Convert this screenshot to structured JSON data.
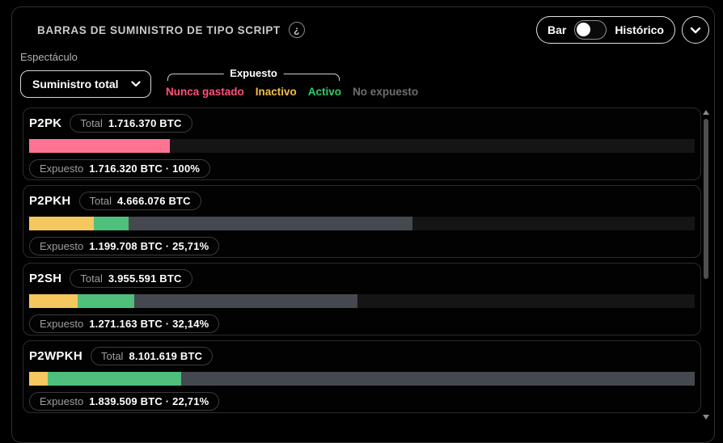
{
  "header": {
    "title": "BARRAS DE SUMINISTRO DE TIPO SCRIPT",
    "info_icon_glyph": "¿",
    "toggle": {
      "left_label": "Bar",
      "right_label": "Histórico",
      "state": "left"
    },
    "collapse_icon": "chevron-down"
  },
  "controls": {
    "show_label": "Espectáculo",
    "select": {
      "value": "Suministro total"
    },
    "legend": {
      "bracket_label": "Expuesto",
      "items": [
        {
          "label": "Nunca gastado",
          "color": "#fc5277"
        },
        {
          "label": "Inactivo",
          "color": "#f0bf49"
        },
        {
          "label": "Activo",
          "color": "#2fca6c"
        }
      ],
      "outside_item": {
        "label": "No expuesto",
        "color": "#6e6e6e"
      }
    }
  },
  "cards": [
    {
      "name": "P2PK",
      "total_label": "Total",
      "total_value": "1.716.370 BTC",
      "exposed_label": "Expuesto",
      "exposed_value": "1.716.320 BTC · 100%",
      "segments": [
        {
          "color": "#fd7493",
          "width": 21.2
        }
      ]
    },
    {
      "name": "P2PKH",
      "total_label": "Total",
      "total_value": "4.666.076 BTC",
      "exposed_label": "Expuesto",
      "exposed_value": "1.199.708 BTC · 25,71%",
      "segments": [
        {
          "color": "#f5c75f",
          "width": 9.7
        },
        {
          "color": "#4ec07c",
          "width": 5.2
        },
        {
          "color": "#45494f",
          "width": 42.7
        }
      ]
    },
    {
      "name": "P2SH",
      "total_label": "Total",
      "total_value": "3.955.591 BTC",
      "exposed_label": "Expuesto",
      "exposed_value": "1.271.163 BTC · 32,14%",
      "segments": [
        {
          "color": "#f5c75f",
          "width": 7.3
        },
        {
          "color": "#4ec07c",
          "width": 8.5
        },
        {
          "color": "#45494f",
          "width": 33.5
        }
      ]
    },
    {
      "name": "P2WPKH",
      "total_label": "Total",
      "total_value": "8.101.619 BTC",
      "exposed_label": "Expuesto",
      "exposed_value": "1.839.509 BTC · 22,71%",
      "segments": [
        {
          "color": "#f5c75f",
          "width": 2.8
        },
        {
          "color": "#4ec07c",
          "width": 20.1
        },
        {
          "color": "#45494f",
          "width": 77.1
        }
      ]
    }
  ],
  "colors": {
    "never_spent": "#fd7493",
    "inactive": "#f5c75f",
    "active": "#4ec07c",
    "not_exposed": "#45494f",
    "bar_track": "#151515",
    "panel_border": "#2f2f2f",
    "card_border": "#2c2c2c"
  },
  "chart_data": {
    "type": "bar",
    "orientation": "horizontal-stacked",
    "title": "Barras de suministro de tipo script",
    "categories": [
      "P2PK",
      "P2PKH",
      "P2SH",
      "P2WPKH"
    ],
    "totals_btc": [
      1716370,
      4666076,
      3955591,
      8101619
    ],
    "exposed_btc": [
      1716320,
      1199708,
      1271163,
      1839509
    ],
    "exposed_pct": [
      100,
      25.71,
      32.14,
      22.71
    ],
    "series": [
      {
        "name": "Nunca gastado",
        "color": "#fd7493",
        "values": [
          1716320,
          0,
          0,
          0
        ]
      },
      {
        "name": "Inactivo",
        "color": "#f5c75f",
        "values": [
          0,
          780000,
          590000,
          230000
        ]
      },
      {
        "name": "Activo",
        "color": "#4ec07c",
        "values": [
          0,
          420000,
          680000,
          1610000
        ]
      },
      {
        "name": "No expuesto",
        "color": "#45494f",
        "values": [
          0,
          3466368,
          2684428,
          6262110
        ]
      }
    ],
    "xlim": [
      0,
      8101619
    ],
    "legend_position": "top",
    "grid": false
  }
}
